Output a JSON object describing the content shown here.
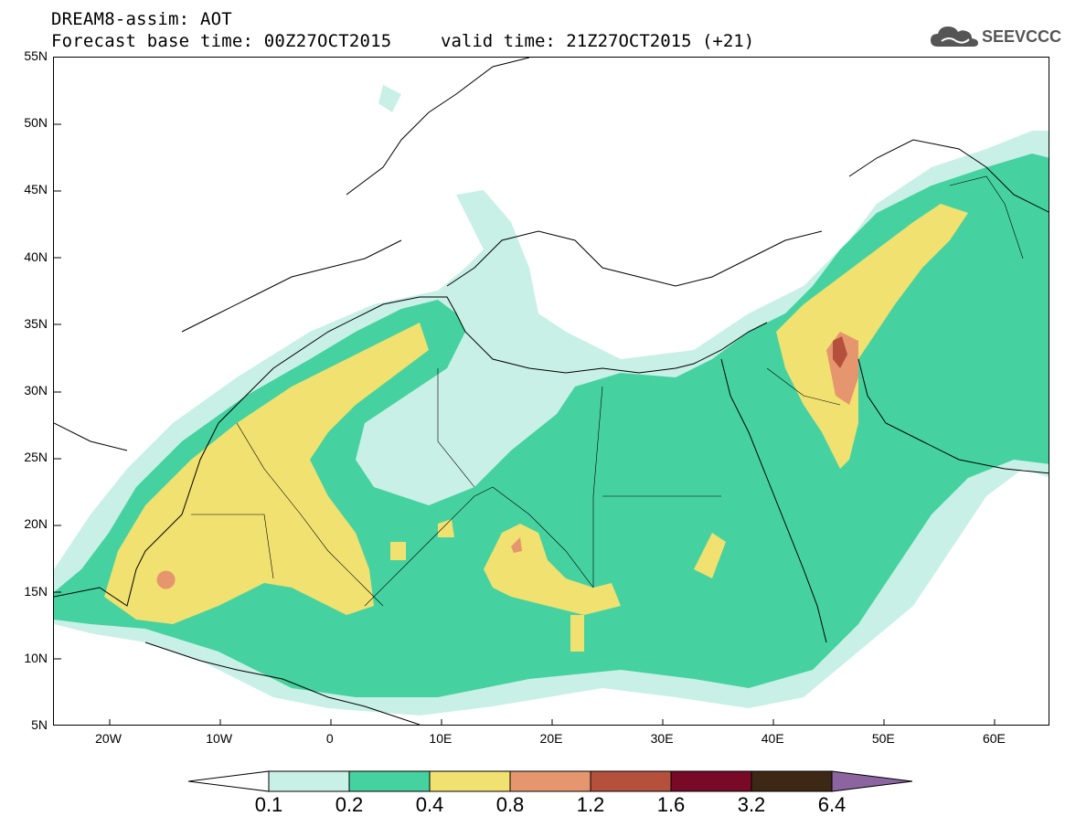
{
  "title": {
    "line1": "DREAM8-assim: AOT",
    "line2": "Forecast base time: 00Z27OCT2015",
    "valid": "valid time: 21Z27OCT2015 (+21)"
  },
  "logo": {
    "text": "SEEVCCC",
    "icon": "cloud-icon"
  },
  "map": {
    "lon_range": [
      -25,
      65
    ],
    "lat_range": [
      5,
      55
    ],
    "lat_ticks": [
      "55N",
      "50N",
      "45N",
      "40N",
      "35N",
      "30N",
      "25N",
      "20N",
      "15N",
      "10N",
      "5N"
    ],
    "lon_ticks": [
      "20W",
      "10W",
      "0",
      "10E",
      "20E",
      "30E",
      "40E",
      "50E",
      "60E"
    ],
    "lon_tick_values": [
      -20,
      -10,
      0,
      10,
      20,
      30,
      40,
      50,
      60
    ],
    "lat_tick_values": [
      55,
      50,
      45,
      40,
      35,
      30,
      25,
      20,
      15,
      10,
      5
    ]
  },
  "colorbar": {
    "labels": [
      "0.1",
      "0.2",
      "0.4",
      "0.8",
      "1.2",
      "1.6",
      "3.2",
      "6.4"
    ],
    "colors": [
      "#ffffff",
      "#c8f0e6",
      "#46d2a0",
      "#f0e170",
      "#e6966e",
      "#b4503c",
      "#780a28",
      "#3c2814",
      "#8c64a0"
    ]
  }
}
